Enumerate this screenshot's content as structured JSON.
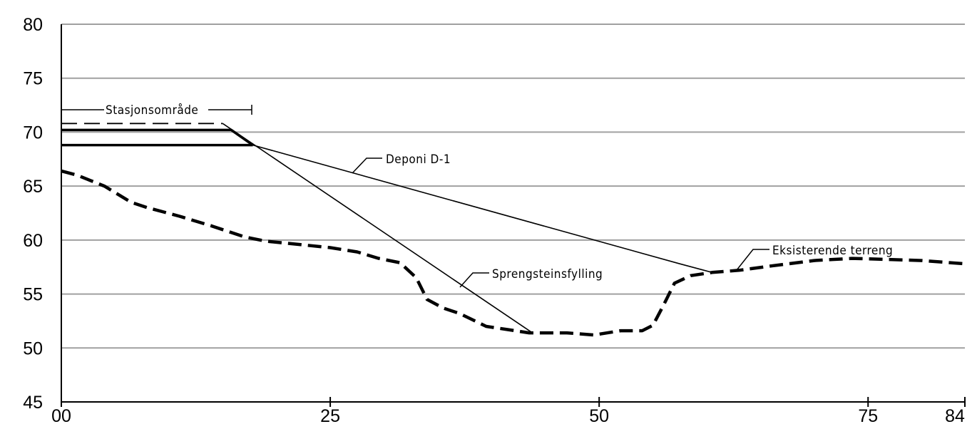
{
  "chart_data": {
    "type": "line",
    "title": "",
    "xlabel": "",
    "ylabel": "",
    "xlim": [
      0,
      84
    ],
    "ylim": [
      45,
      80
    ],
    "x_ticks": [
      {
        "value": 0,
        "label": "00"
      },
      {
        "value": 25,
        "label": "25"
      },
      {
        "value": 50,
        "label": "50"
      },
      {
        "value": 75,
        "label": "75"
      },
      {
        "value": 84,
        "label": "84"
      }
    ],
    "y_ticks": [
      {
        "value": 45,
        "label": "45"
      },
      {
        "value": 50,
        "label": "50"
      },
      {
        "value": 55,
        "label": "55"
      },
      {
        "value": 60,
        "label": "60"
      },
      {
        "value": 65,
        "label": "65"
      },
      {
        "value": 70,
        "label": "70"
      },
      {
        "value": 75,
        "label": "75"
      },
      {
        "value": 80,
        "label": "80"
      }
    ],
    "grid": true,
    "series": [
      {
        "key": "existing-terrain",
        "name": "Eksisterende terreng",
        "style": "thick-dashed",
        "points": [
          [
            0,
            66.4
          ],
          [
            1.5,
            66.0
          ],
          [
            4,
            65.0
          ],
          [
            6.5,
            63.5
          ],
          [
            8,
            63.0
          ],
          [
            11,
            62.2
          ],
          [
            14,
            61.3
          ],
          [
            17,
            60.3
          ],
          [
            19,
            59.9
          ],
          [
            22,
            59.6
          ],
          [
            25,
            59.3
          ],
          [
            27.5,
            58.9
          ],
          [
            29.5,
            58.3
          ],
          [
            31.5,
            57.9
          ],
          [
            33,
            56.5
          ],
          [
            34,
            54.5
          ],
          [
            35.5,
            53.7
          ],
          [
            37,
            53.2
          ],
          [
            39.5,
            52.0
          ],
          [
            41.5,
            51.7
          ],
          [
            43.5,
            51.4
          ],
          [
            47,
            51.4
          ],
          [
            49.5,
            51.2
          ],
          [
            52,
            51.6
          ],
          [
            54,
            51.6
          ],
          [
            55,
            52.1
          ],
          [
            56,
            54.0
          ],
          [
            57,
            56.0
          ],
          [
            58.5,
            56.7
          ],
          [
            60.5,
            57.0
          ],
          [
            63,
            57.2
          ],
          [
            66,
            57.6
          ],
          [
            70,
            58.1
          ],
          [
            73.5,
            58.3
          ],
          [
            77,
            58.2
          ],
          [
            80,
            58.1
          ],
          [
            84,
            57.8
          ]
        ]
      },
      {
        "key": "deponi",
        "name": "Deponi D-1",
        "style": "thin",
        "points": [
          [
            17.8,
            68.8
          ],
          [
            57.5,
            57.8
          ],
          [
            60.5,
            57.0
          ]
        ]
      },
      {
        "key": "sprengstein",
        "name": "Sprengsteinsfylling",
        "style": "thin",
        "points": [
          [
            15.0,
            70.8
          ],
          [
            43.8,
            51.4
          ]
        ]
      },
      {
        "key": "platform-upper",
        "name": "",
        "style": "thick",
        "points": [
          [
            0,
            70.2
          ],
          [
            15.8,
            70.2
          ],
          [
            17.8,
            68.8
          ]
        ]
      },
      {
        "key": "platform-lower",
        "name": "",
        "style": "thick",
        "points": [
          [
            0,
            68.8
          ],
          [
            17.8,
            68.8
          ]
        ]
      },
      {
        "key": "platform-dashed",
        "name": "",
        "style": "thin-dashed",
        "points": [
          [
            0,
            70.8
          ],
          [
            15.0,
            70.8
          ]
        ]
      }
    ],
    "annotations": [
      {
        "key": "stasjon",
        "text": "Stasjonsområde"
      },
      {
        "key": "deponi",
        "text": "Deponi D-1"
      },
      {
        "key": "spreng",
        "text": "Sprengsteinsfylling"
      },
      {
        "key": "terreng",
        "text": "Eksisterende terreng"
      }
    ]
  }
}
